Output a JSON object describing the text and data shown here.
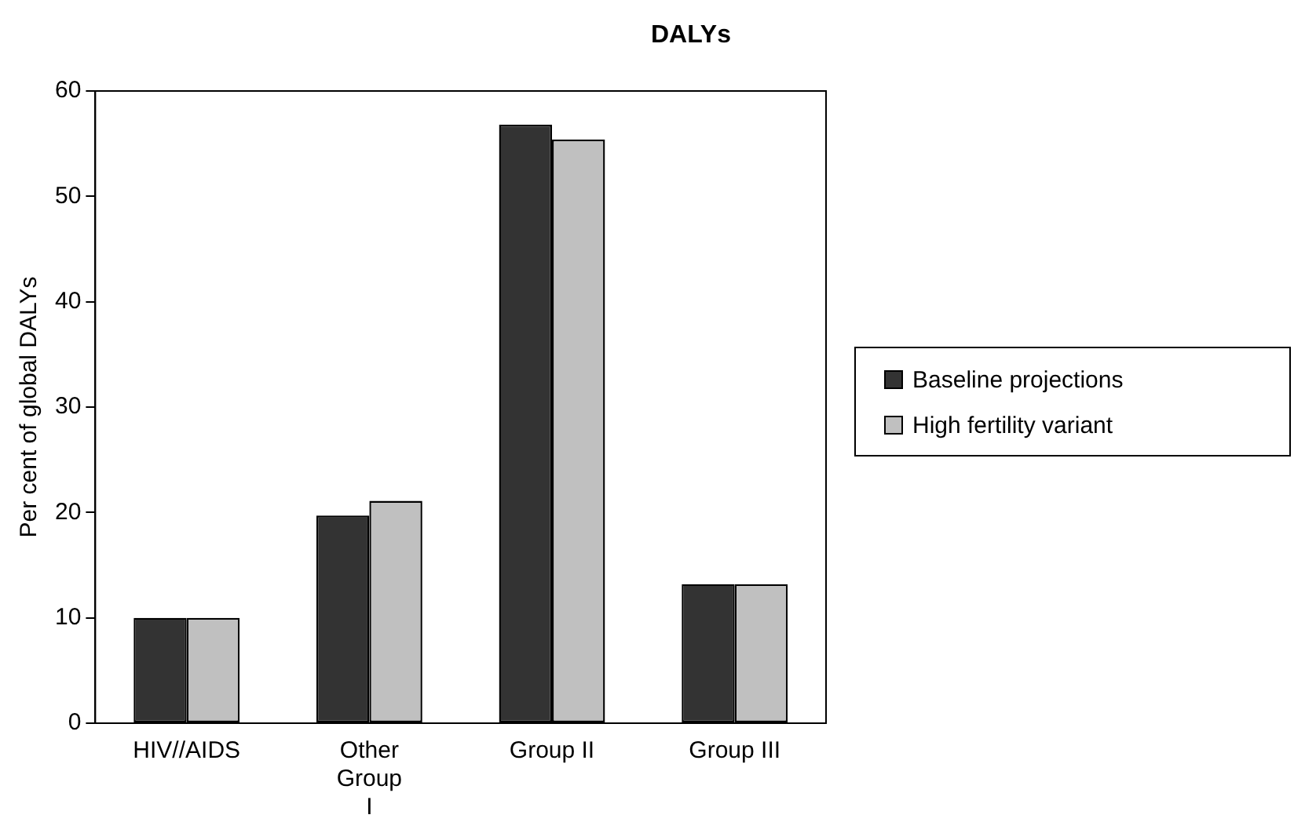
{
  "chart_data": {
    "type": "bar",
    "title": "DALYs",
    "ylabel": "Per cent of global DALYs",
    "categories": [
      "HIV//AIDS",
      "Other Group I",
      "Group II",
      "Group III"
    ],
    "series": [
      {
        "name": "Baseline projections",
        "color": "#333333",
        "values": [
          10.0,
          19.7,
          56.8,
          13.2
        ]
      },
      {
        "name": "High fertility variant",
        "color": "#c0c0c0",
        "values": [
          10.0,
          21.1,
          55.4,
          13.2
        ]
      }
    ],
    "ylim": [
      0,
      60
    ],
    "yticks": [
      0,
      10,
      20,
      30,
      40,
      50,
      60
    ],
    "grid": false,
    "legend": "right"
  }
}
